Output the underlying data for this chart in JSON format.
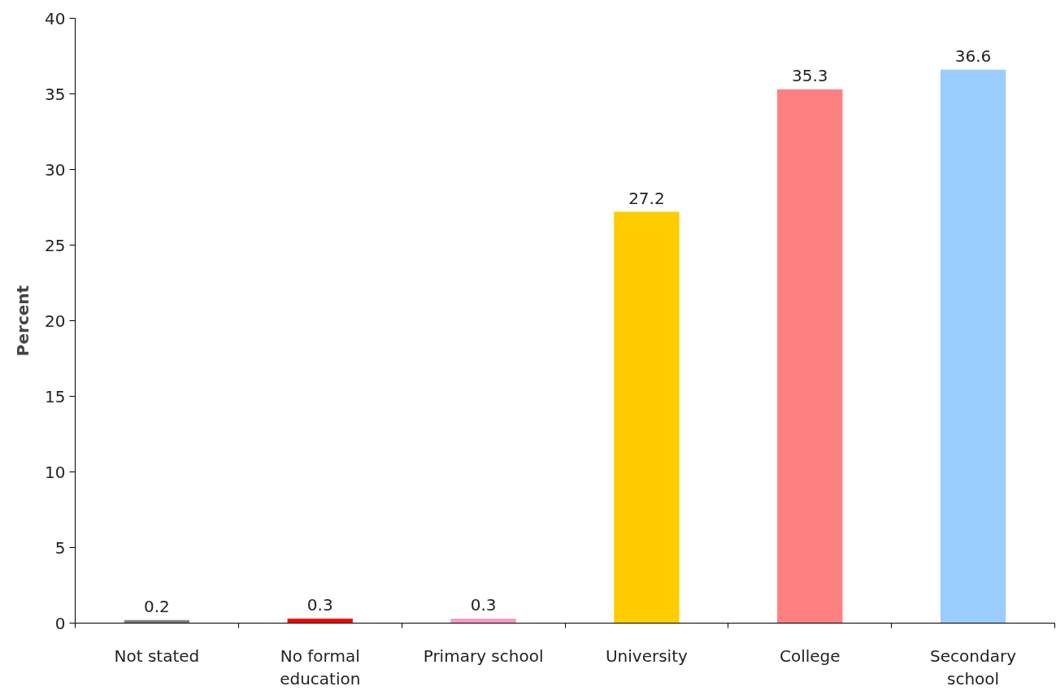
{
  "chart_data": {
    "type": "bar",
    "ylabel": "Percent",
    "categories": [
      "Not stated",
      "No formal education",
      "Primary school",
      "University",
      "College",
      "Secondary school"
    ],
    "values": [
      0.2,
      0.3,
      0.3,
      27.2,
      35.3,
      36.6
    ],
    "colors": [
      "#808080",
      "#ff0000",
      "#ff99cc",
      "#ffcc00",
      "#ff8080",
      "#99ccff"
    ],
    "ylim": [
      0,
      40
    ],
    "yticks": [
      0,
      5,
      10,
      15,
      20,
      25,
      30,
      35,
      40
    ],
    "data_labels": true,
    "grid": false
  }
}
